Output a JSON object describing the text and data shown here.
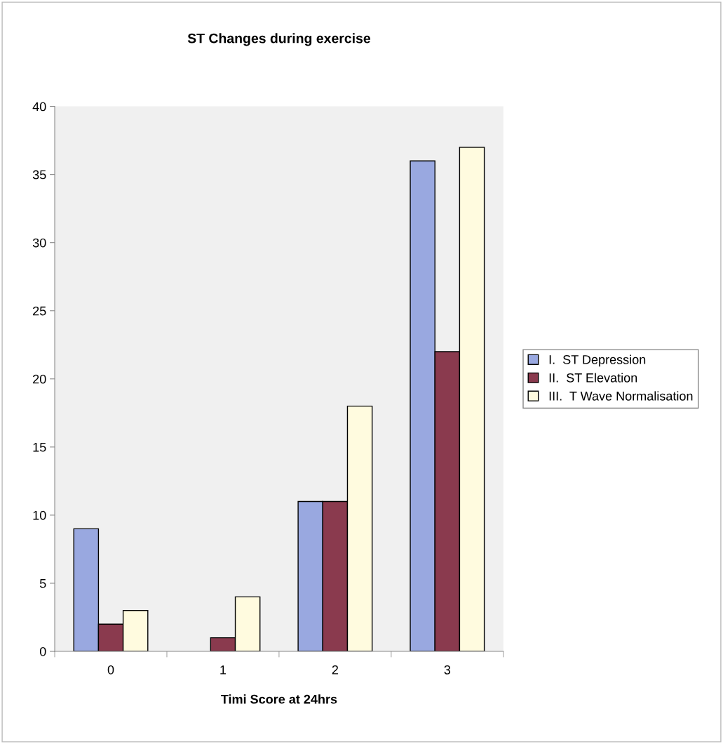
{
  "chart_data": {
    "type": "bar",
    "title": "ST Changes during exercise",
    "xlabel": "Timi Score at 24hrs",
    "categories": [
      "0",
      "1",
      "2",
      "3"
    ],
    "series": [
      {
        "name": "I.  ST Depression",
        "color": "#99a8e0",
        "values": [
          9,
          0,
          11,
          36
        ]
      },
      {
        "name": "II.  ST Elevation",
        "color": "#8a3a4e",
        "values": [
          2,
          1,
          11,
          22
        ]
      },
      {
        "name": "III.  T Wave Normalisation",
        "color": "#fffbdf",
        "values": [
          3,
          4,
          18,
          37
        ]
      }
    ],
    "ylim": [
      0,
      40
    ],
    "yticks": [
      0,
      5,
      10,
      15,
      20,
      25,
      30,
      35,
      40
    ],
    "grid": false,
    "legend": "right"
  }
}
